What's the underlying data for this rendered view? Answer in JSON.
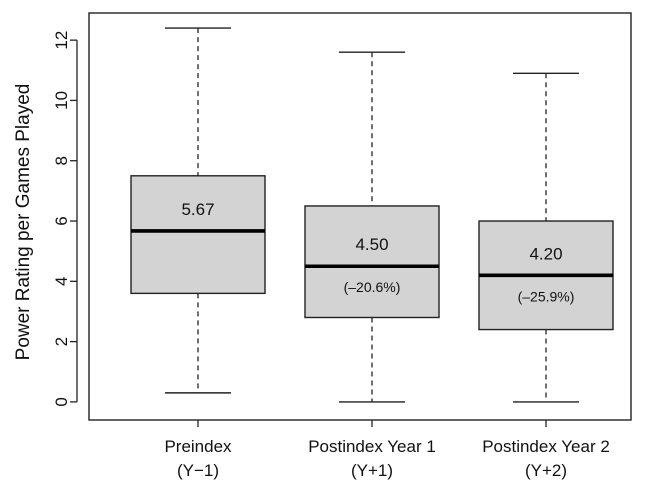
{
  "chart_data": {
    "type": "boxplot",
    "ylabel": "Power Rating per Games Played",
    "xlabel": "",
    "ylim": [
      -0.6,
      12.9
    ],
    "yticks": [
      0,
      2,
      4,
      6,
      8,
      10,
      12
    ],
    "grid": false,
    "box_color": "#d3d3d3",
    "categories": [
      {
        "line1": "Preindex",
        "line2": "(Y−1)"
      },
      {
        "line1": "Postindex Year 1",
        "line2": "(Y+1)"
      },
      {
        "line1": "Postindex Year 2",
        "line2": "(Y+2)"
      }
    ],
    "boxes": [
      {
        "whisker_low": 0.3,
        "q1": 3.6,
        "median": 5.67,
        "q3": 7.5,
        "whisker_high": 12.4,
        "median_label": "5.67",
        "change_label": ""
      },
      {
        "whisker_low": 0.0,
        "q1": 2.8,
        "median": 4.5,
        "q3": 6.5,
        "whisker_high": 11.6,
        "median_label": "4.50",
        "change_label": "(–20.6%)"
      },
      {
        "whisker_low": 0.0,
        "q1": 2.4,
        "median": 4.2,
        "q3": 6.0,
        "whisker_high": 10.9,
        "median_label": "4.20",
        "change_label": "(–25.9%)"
      }
    ]
  }
}
